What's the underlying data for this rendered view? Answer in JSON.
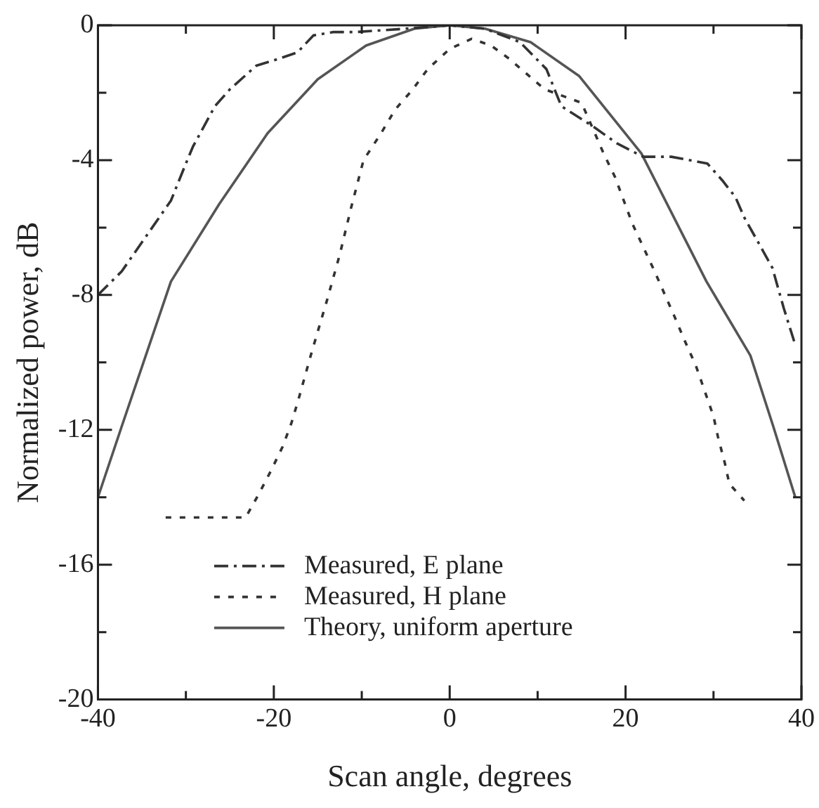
{
  "chart_data": {
    "type": "line",
    "xlabel": "Scan angle, degrees",
    "ylabel": "Normalized power, dB",
    "xlim": [
      -40,
      40
    ],
    "ylim": [
      -20,
      0
    ],
    "xticks": [
      -40,
      {
        "value": -30,
        "label": null
      },
      -20,
      {
        "value": -10,
        "label": null
      },
      0,
      {
        "value": 10,
        "label": null
      },
      20,
      {
        "value": 30,
        "label": null
      },
      40
    ],
    "yticks": [
      -20,
      {
        "value": -18,
        "label": null
      },
      -16,
      {
        "value": -14,
        "label": null
      },
      -12,
      {
        "value": -10,
        "label": null
      },
      -8,
      {
        "value": -6,
        "label": null
      },
      -4,
      {
        "value": -2,
        "label": null
      },
      0
    ],
    "grid": false,
    "legend": "bottom",
    "marker": "none",
    "series": [
      {
        "name": "Measured, E plane",
        "color": "#333333",
        "line_style": "dashed",
        "x": [
          -40,
          -37.3,
          -31.7,
          -30,
          -29.2,
          -26.7,
          -25,
          -22,
          -19.5,
          -17.3,
          -15.5,
          -13.2,
          -10.7,
          -5,
          0,
          4,
          8,
          11,
          12.7,
          16.3,
          19,
          22,
          25.2,
          29.3,
          31,
          32.5,
          33.5,
          35,
          36.7,
          38,
          39.2
        ],
        "values": [
          -8,
          -7.3,
          -5.2,
          -4.1,
          -3.6,
          -2.4,
          -1.9,
          -1.2,
          -1,
          -0.8,
          -0.3,
          -0.2,
          -0.2,
          -0.1,
          0,
          -0.1,
          -0.5,
          -1.3,
          -2.4,
          -3,
          -3.5,
          -3.9,
          -3.9,
          -4.1,
          -4.6,
          -5.1,
          -5.7,
          -6.4,
          -7.2,
          -8.4,
          -9.4
        ]
      },
      {
        "name": "Measured, H plane",
        "color": "#333333",
        "line_style": "dotted",
        "x": [
          -32.3,
          -23.2,
          -21.7,
          -20.3,
          -19,
          -18,
          -17.2,
          -15.7,
          -14,
          -12.5,
          -11.2,
          -9.8,
          -7.8,
          -6.2,
          -4.2,
          -2.5,
          0,
          2.5,
          4.7,
          6.8,
          10.8,
          15,
          17.5,
          18.8,
          20.8,
          23.3,
          25.5,
          26.8,
          28,
          30,
          30.5,
          31.3,
          31.8,
          33.5
        ],
        "values": [
          -14.6,
          -14.6,
          -13.9,
          -13.2,
          -12.5,
          -11.8,
          -11.1,
          -9.7,
          -8.2,
          -6.8,
          -5.4,
          -4,
          -3.2,
          -2.5,
          -1.9,
          -1.3,
          -0.7,
          -0.4,
          -0.6,
          -1,
          -1.9,
          -2.3,
          -3.8,
          -4.5,
          -5.9,
          -7.3,
          -8.6,
          -9.4,
          -10.1,
          -11.6,
          -12.2,
          -13,
          -13.6,
          -14.1
        ]
      },
      {
        "name": "Theory, uniform aperture",
        "color": "#555555",
        "line_style": "solid",
        "x": [
          -40,
          -37.3,
          -31.7,
          -26.2,
          -20.7,
          -15,
          -9.5,
          -4,
          0,
          4,
          9.2,
          14.7,
          21.8,
          29.2,
          34.2,
          36.8,
          39.3
        ],
        "values": [
          -14,
          -11.9,
          -7.6,
          -5.3,
          -3.2,
          -1.6,
          -0.6,
          -0.1,
          0,
          -0.1,
          -0.5,
          -1.5,
          -3.8,
          -7.6,
          -9.8,
          -11.9,
          -14
        ]
      }
    ]
  }
}
